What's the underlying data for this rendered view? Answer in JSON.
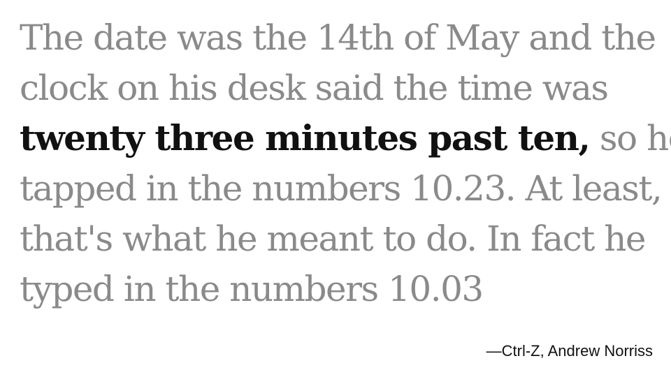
{
  "quote": {
    "line1": "The date was the 14th of May and the",
    "line2": "clock on his desk said the time was",
    "line3_emphasis": "twenty three minutes past ten,",
    "line3_rest": " so he",
    "line4": "tapped in the numbers 10.23. At least,",
    "line5": "that's what he meant to do. In fact he",
    "line6": "typed in the numbers 10.03"
  },
  "attribution": "—Ctrl-Z, Andrew Norriss",
  "colors": {
    "body_text": "#8a8a8a",
    "emphasis_text": "#111111",
    "background": "#ffffff"
  }
}
